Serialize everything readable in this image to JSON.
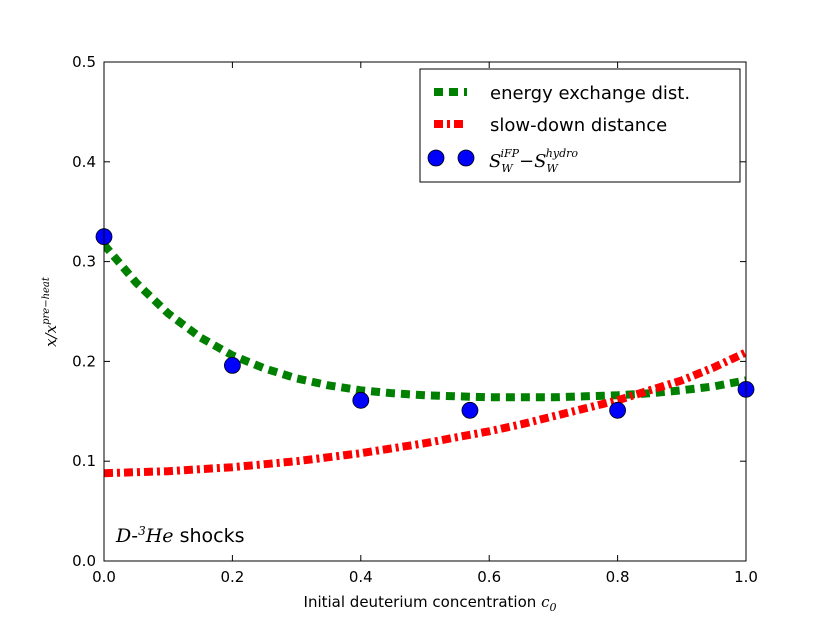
{
  "chart_data": {
    "type": "line",
    "xlabel": "Initial deuterium concentration",
    "xlabel_symbol": "c",
    "xlabel_subscript": "0",
    "ylabel": {
      "num": "x",
      "slash": "/",
      "den": "x",
      "den_superscript": "pre−heat"
    },
    "xlim": [
      0.0,
      1.0
    ],
    "ylim": [
      0.0,
      0.5
    ],
    "x_ticks": [
      "0.0",
      "0.2",
      "0.4",
      "0.6",
      "0.8",
      "1.0"
    ],
    "y_ticks": [
      "0.0",
      "0.1",
      "0.2",
      "0.3",
      "0.4",
      "0.5"
    ],
    "series": [
      {
        "name": "energy exchange dist.",
        "style": "dashed",
        "color": "#008000",
        "x": [
          0.0,
          0.05,
          0.1,
          0.15,
          0.2,
          0.25,
          0.3,
          0.35,
          0.4,
          0.45,
          0.5,
          0.55,
          0.6,
          0.65,
          0.7,
          0.75,
          0.8,
          0.85,
          0.9,
          0.95,
          1.0
        ],
        "y": [
          0.317,
          0.279,
          0.248,
          0.224,
          0.206,
          0.193,
          0.183,
          0.176,
          0.171,
          0.168,
          0.166,
          0.165,
          0.164,
          0.164,
          0.164,
          0.165,
          0.166,
          0.168,
          0.171,
          0.175,
          0.181
        ]
      },
      {
        "name": "slow-down distance",
        "style": "dashdot",
        "color": "#ff0000",
        "x": [
          0.0,
          0.05,
          0.1,
          0.15,
          0.2,
          0.25,
          0.3,
          0.35,
          0.4,
          0.45,
          0.5,
          0.55,
          0.6,
          0.65,
          0.7,
          0.75,
          0.8,
          0.85,
          0.9,
          0.95,
          1.0
        ],
        "y": [
          0.088,
          0.089,
          0.09,
          0.092,
          0.094,
          0.097,
          0.1,
          0.104,
          0.108,
          0.113,
          0.118,
          0.124,
          0.13,
          0.137,
          0.145,
          0.153,
          0.161,
          0.171,
          0.181,
          0.194,
          0.209
        ]
      },
      {
        "name": "S_W^iFP − S_W^hydro",
        "style": "markers",
        "color": "#0000ff",
        "x": [
          0.0,
          0.2,
          0.4,
          0.57,
          0.8,
          1.0
        ],
        "y": [
          0.325,
          0.196,
          0.161,
          0.151,
          0.151,
          0.172
        ]
      }
    ],
    "legend": {
      "position": "top-right",
      "entries": [
        "energy exchange dist.",
        "slow-down distance",
        "S_W^iFP − S_W^hydro"
      ],
      "math": {
        "sym": "S",
        "sub": "W",
        "sup1": "iFP",
        "minus": "−",
        "sup2": "hydro"
      }
    },
    "annotation": {
      "d": "D",
      "dash": "-",
      "sup": "3",
      "he": "He",
      "text": " shocks",
      "position": "bottom-left"
    }
  }
}
